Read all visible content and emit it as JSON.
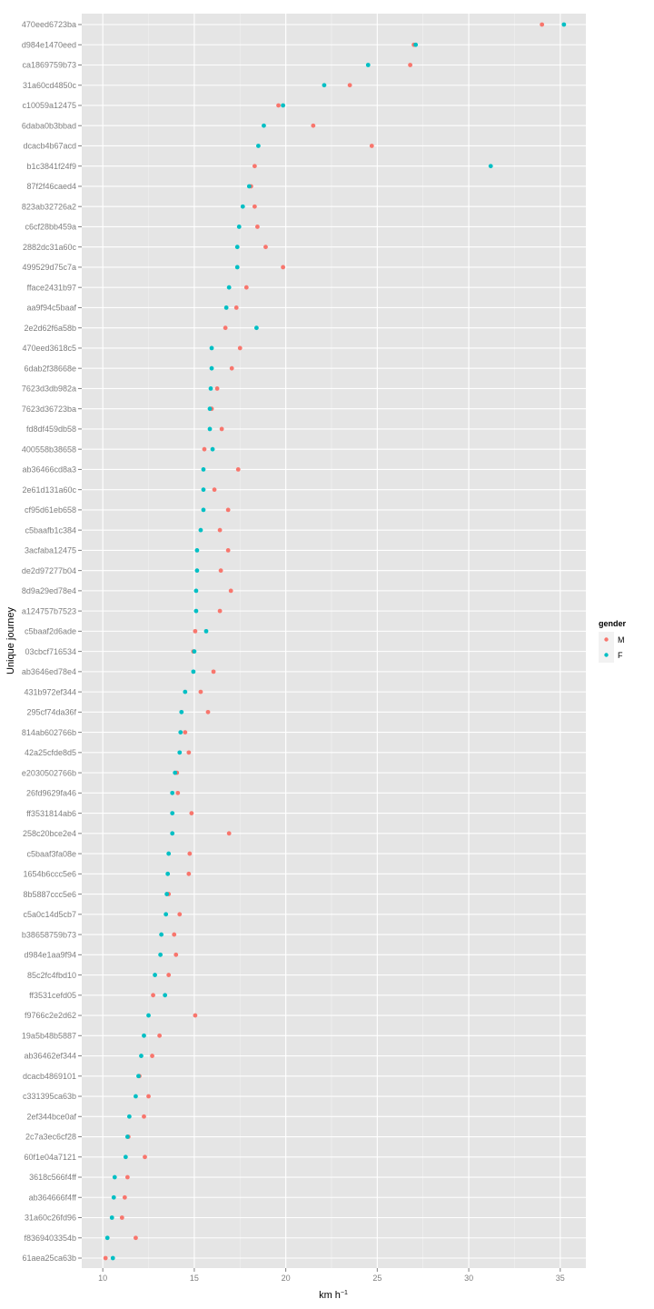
{
  "chart_data": {
    "type": "scatter",
    "xlabel": "km h",
    "xlabel_superscript": "−1",
    "ylabel": "Unique journey",
    "xlim": [
      8.85,
      36.4
    ],
    "xticks": [
      10,
      15,
      20,
      25,
      30,
      35
    ],
    "grid": true,
    "legend": {
      "title": "gender",
      "placement": "right",
      "entries": [
        "M",
        "F"
      ]
    },
    "colors": {
      "M": "#F8766D",
      "F": "#00BFC4",
      "panel": "#E5E5E5",
      "grid": "#FFFFFF"
    },
    "categories": [
      "470eed6723ba",
      "d984e1470eed",
      "ca1869759b73",
      "31a60cd4850c",
      "c10059a12475",
      "6daba0b3bbad",
      "dcacb4b67acd",
      "b1c3841f24f9",
      "87f2f46caed4",
      "823ab32726a2",
      "c6cf28bb459a",
      "2882dc31a60c",
      "499529d75c7a",
      "fface2431b97",
      "aa9f94c5baaf",
      "2e2d62f6a58b",
      "470eed3618c5",
      "6dab2f38668e",
      "7623d3db982a",
      "7623d36723ba",
      "fd8df459db58",
      "400558b38658",
      "ab36466cd8a3",
      "2e61d131a60c",
      "cf95d61eb658",
      "c5baafb1c384",
      "3acfaba12475",
      "de2d97277b04",
      "8d9a29ed78e4",
      "a124757b7523",
      "c5baaf2d6ade",
      "03cbcf716534",
      "ab3646ed78e4",
      "431b972ef344",
      "295cf74da36f",
      "814ab602766b",
      "42a25cfde8d5",
      "e2030502766b",
      "26fd9629fa46",
      "ff3531814ab6",
      "258c20bce2e4",
      "c5baaf3fa08e",
      "1654b6ccc5e6",
      "8b5887ccc5e6",
      "c5a0c14d5cb7",
      "b38658759b73",
      "d984e1aa9f94",
      "85c2fc4fbd10",
      "ff3531cefd05",
      "f9766c2e2d62",
      "19a5b48b5887",
      "ab36462ef344",
      "dcacb4869101",
      "c331395ca63b",
      "2ef344bce0af",
      "2c7a3ec6cf28",
      "60f1e04a7121",
      "3618c566f4ff",
      "ab364666f4ff",
      "31a60c26fd96",
      "f8369403354b",
      "61aea25ca63b"
    ],
    "series": [
      {
        "name": "M",
        "values": [
          34.0,
          27.0,
          26.8,
          23.5,
          19.6,
          21.5,
          24.7,
          18.3,
          18.1,
          18.3,
          18.45,
          18.9,
          19.85,
          17.85,
          17.3,
          16.7,
          17.5,
          17.05,
          16.25,
          15.95,
          16.5,
          15.55,
          17.4,
          16.1,
          16.85,
          16.4,
          16.85,
          16.45,
          17.0,
          16.4,
          15.05,
          14.95,
          16.05,
          15.35,
          15.75,
          14.5,
          14.7,
          14.05,
          14.1,
          14.85,
          16.9,
          14.75,
          14.7,
          13.6,
          14.2,
          13.9,
          14.0,
          13.6,
          12.75,
          15.05,
          13.1,
          12.7,
          12.0,
          12.5,
          12.25,
          11.4,
          12.3,
          11.35,
          11.2,
          11.05,
          11.8,
          10.15
        ]
      },
      {
        "name": "F",
        "values": [
          35.2,
          27.1,
          24.5,
          22.1,
          19.85,
          18.8,
          18.5,
          31.2,
          18.0,
          17.65,
          17.45,
          17.35,
          17.35,
          16.9,
          16.75,
          18.4,
          15.95,
          15.95,
          15.9,
          15.85,
          15.85,
          16.0,
          15.5,
          15.5,
          15.5,
          15.35,
          15.15,
          15.15,
          15.1,
          15.1,
          15.65,
          15.0,
          14.95,
          14.5,
          14.3,
          14.25,
          14.2,
          13.95,
          13.8,
          13.8,
          13.8,
          13.6,
          13.55,
          13.5,
          13.45,
          13.2,
          13.15,
          12.85,
          13.4,
          12.5,
          12.25,
          12.1,
          11.95,
          11.8,
          11.45,
          11.35,
          11.25,
          10.65,
          10.6,
          10.5,
          10.25,
          10.55
        ]
      }
    ]
  }
}
